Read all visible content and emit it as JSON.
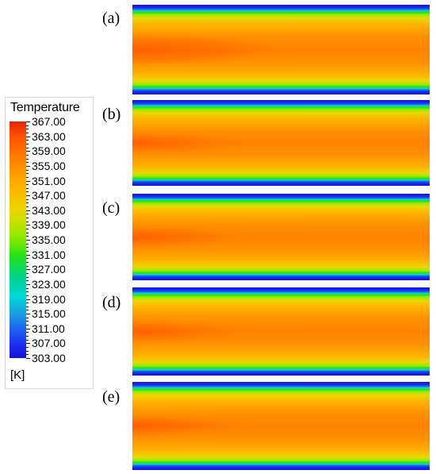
{
  "legend": {
    "title": "Temperature",
    "unit": "[K]",
    "ticks": [
      "367.00",
      "363.00",
      "359.00",
      "355.00",
      "351.00",
      "347.00",
      "343.00",
      "339.00",
      "335.00",
      "331.00",
      "327.00",
      "323.00",
      "319.00",
      "315.00",
      "311.00",
      "307.00",
      "303.00"
    ],
    "colors": {
      "max": "#e4230a",
      "mid": "#22e214",
      "min": "#1414d8"
    }
  },
  "panels": [
    {
      "label": "(a)"
    },
    {
      "label": "(b)"
    },
    {
      "label": "(c)"
    },
    {
      "label": "(d)"
    },
    {
      "label": "(e)"
    }
  ]
}
